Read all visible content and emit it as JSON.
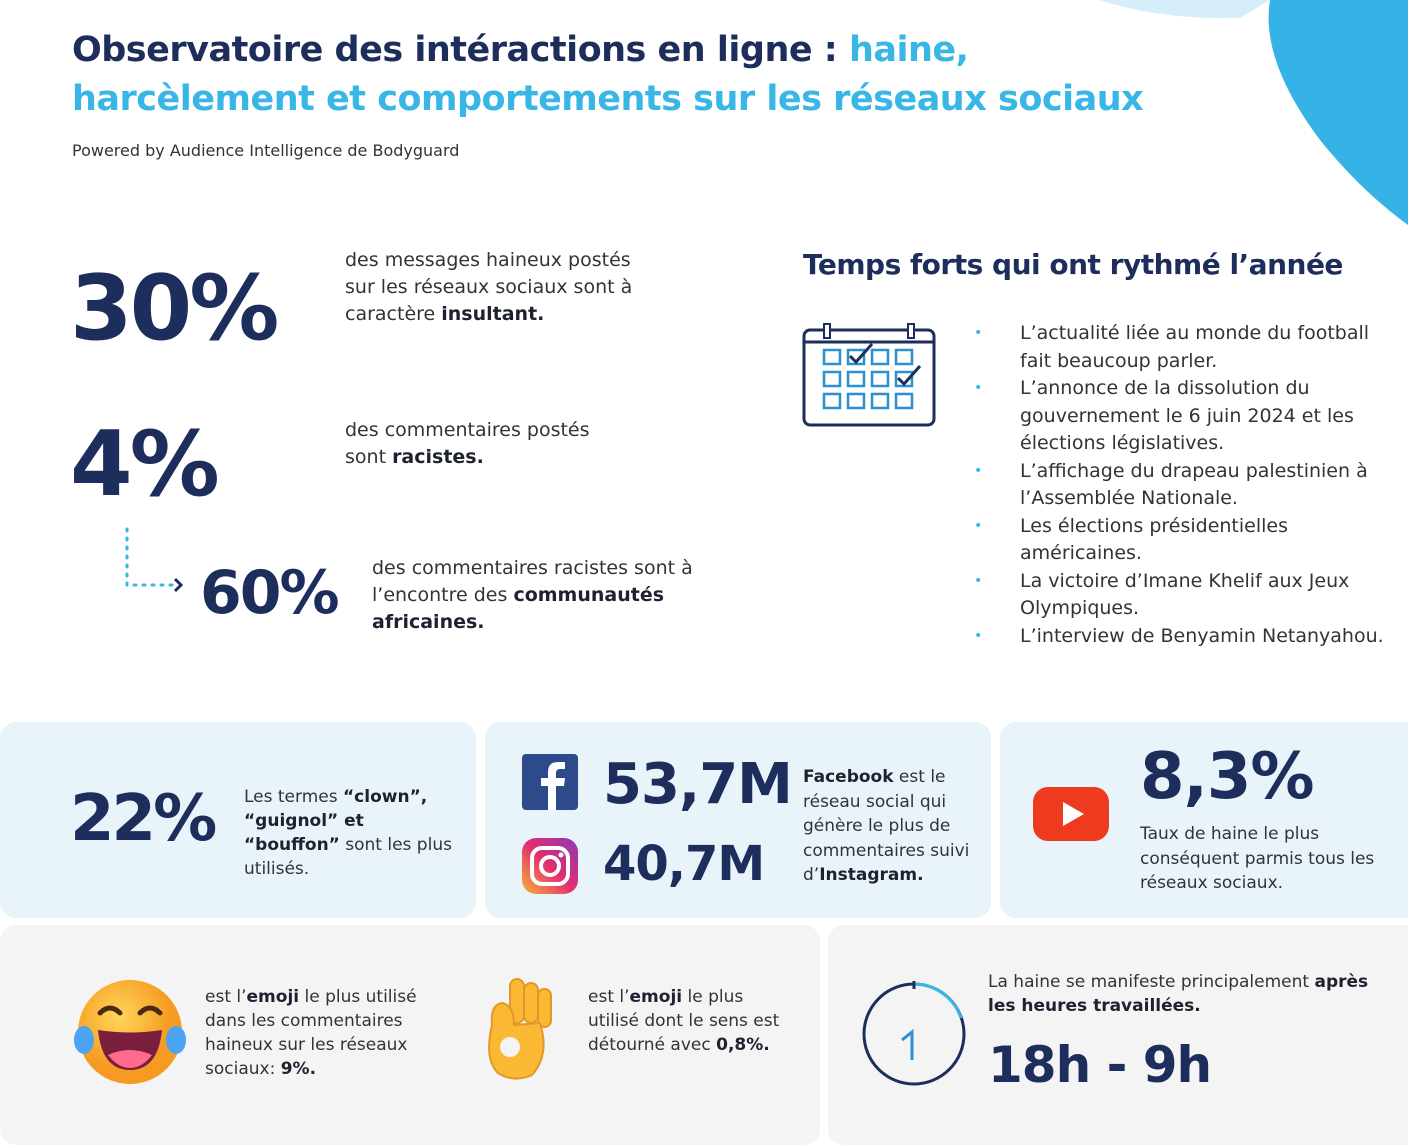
{
  "header": {
    "title": "Observatoire des intéractions en ligne :",
    "title_highlight": "haine, harcèlement et comportements sur les réseaux sociaux",
    "subtitle": "Powered by Audience Intelligence de Bodyguard"
  },
  "stats": [
    {
      "figure": "30%",
      "text": [
        "des messages haineux postés sur les réseaux sociaux sont à caractère ",
        "insultant."
      ]
    },
    {
      "figure": "4%",
      "text": [
        "des commentaires postés sont ",
        "racistes."
      ]
    },
    {
      "figure": "60%",
      "text": [
        "des commentaires racistes sont à l’encontre des ",
        "communautés africaines."
      ]
    }
  ],
  "highlights": {
    "title": "Temps forts qui ont rythmé l’année",
    "items": [
      "L’actualité liée au monde du football fait beaucoup parler.",
      "L’annonce de la dissolution du gouvernement le 6 juin 2024 et les élections législatives.",
      "L’affichage du drapeau palestinien à l’Assemblée Nationale.",
      "Les élections présidentielles américaines.",
      "La victoire d’Imane Khelif aux Jeux Olympiques.",
      "L’interview de Benyamin Netanyahou."
    ]
  },
  "cards": [
    {
      "figure": "22%",
      "text": [
        "Les termes ",
        "“clown”, “guignol” et “bouffon”",
        " sont les plus utilisés."
      ]
    },
    {
      "figures": [
        "53,7M",
        "40,7M"
      ],
      "text": [
        "Facebook",
        " est le réseau social qui génère le plus de commentaires suivi d’",
        "Instagram."
      ]
    },
    {
      "figure": "8,3%",
      "text": [
        "Taux de haine le plus conséquent parmis tous les réseaux sociaux."
      ]
    },
    {
      "text": [
        "est l’",
        "emoji",
        " le plus utilisé dans les commentaires haineux sur les réseaux sociaux: ",
        "9%."
      ]
    },
    {
      "text": [
        "est l’",
        "emoji",
        " le plus utilisé dont le sens est détourné avec ",
        "0,8%."
      ]
    },
    {
      "text": [
        "La haine se manifeste principalement ",
        "après les heures travaillées."
      ],
      "figure": "18h - 9h"
    }
  ]
}
